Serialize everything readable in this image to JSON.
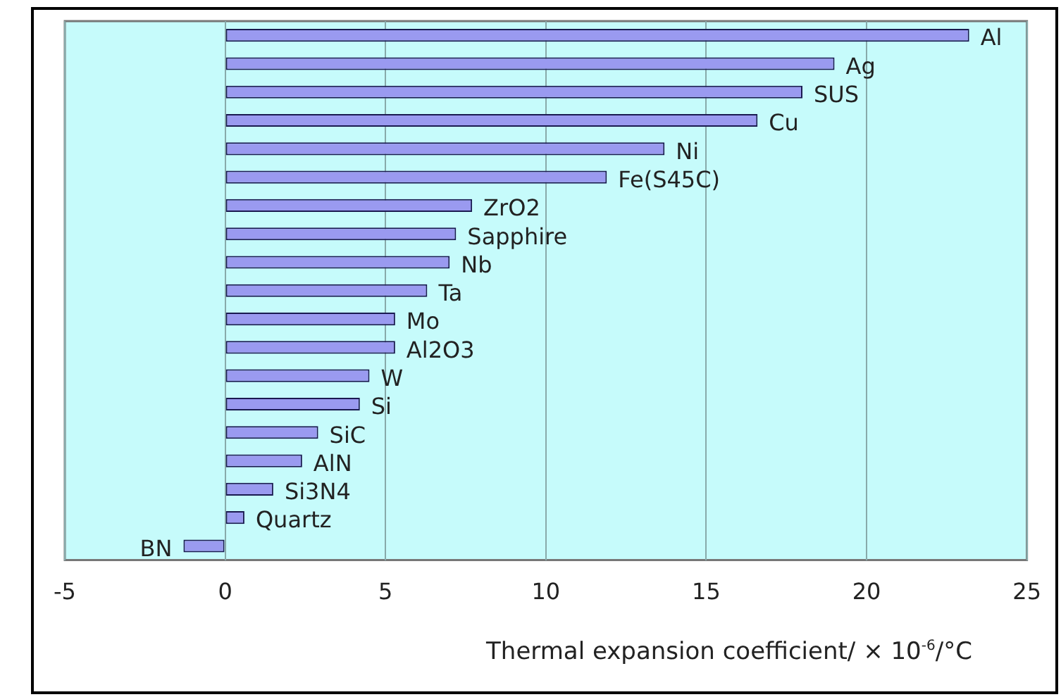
{
  "chart_data": {
    "type": "bar",
    "orientation": "horizontal",
    "xlabel": "Thermal expansion coefficient/ × 10$^{-6}$/°C",
    "categories": [
      "Al",
      "Ag",
      "SUS",
      "Cu",
      "Ni",
      "Fe(S45C)",
      "ZrO2",
      "Sapphire",
      "Nb",
      "Ta",
      "Mo",
      "Al2O3",
      "W",
      "Si",
      "SiC",
      "AlN",
      "Si3N4",
      "Quartz",
      "BN"
    ],
    "values": [
      23.2,
      19.0,
      18.0,
      16.6,
      13.7,
      11.9,
      7.7,
      7.2,
      7.0,
      6.3,
      5.3,
      5.3,
      4.5,
      4.2,
      2.9,
      2.4,
      1.5,
      0.6,
      -1.3
    ],
    "color": "#9a9af0",
    "xlim": [
      -5,
      25
    ],
    "xticks": [
      -5,
      0,
      5,
      10,
      15,
      20,
      25
    ],
    "grid": "x",
    "legend": false,
    "tick_labels": "x"
  }
}
